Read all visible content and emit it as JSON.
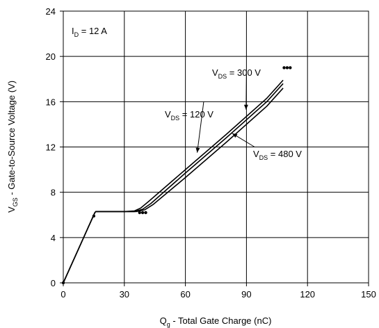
{
  "chart_data": {
    "type": "line",
    "xlabel": {
      "main": "Q",
      "sub": "g",
      "rest": " - Total Gate Charge (nC)"
    },
    "ylabel": {
      "main": "V",
      "sub": "GS",
      "rest": " - Gate-to-Source Voltage (V)"
    },
    "xlim": [
      0,
      150
    ],
    "ylim": [
      0,
      24
    ],
    "xticks": [
      0,
      30,
      60,
      90,
      120,
      150
    ],
    "yticks": [
      0,
      4,
      8,
      12,
      16,
      20,
      24
    ],
    "grid": true,
    "condition": {
      "main": "I",
      "sub": "D",
      "rest": " = 12 A"
    },
    "series": [
      {
        "name": "VDS = 120 V",
        "x": [
          0,
          4,
          8,
          12,
          15.5,
          16,
          20,
          25,
          30,
          35,
          38,
          42,
          60,
          80,
          100,
          108
        ],
        "y": [
          0,
          1.6,
          3.2,
          4.8,
          6.2,
          6.3,
          6.3,
          6.3,
          6.3,
          6.35,
          6.6,
          7.2,
          10.0,
          13.1,
          16.3,
          17.9
        ]
      },
      {
        "name": "VDS = 300 V",
        "x": [
          0,
          4,
          8,
          12,
          15.5,
          16,
          20,
          25,
          30,
          35,
          39,
          43,
          60,
          80,
          100,
          108
        ],
        "y": [
          0,
          1.6,
          3.2,
          4.8,
          6.2,
          6.3,
          6.3,
          6.3,
          6.3,
          6.3,
          6.5,
          7.0,
          9.7,
          12.8,
          16.0,
          17.6
        ]
      },
      {
        "name": "VDS = 480 V",
        "x": [
          0,
          4,
          8,
          12,
          15.5,
          16,
          20,
          25,
          30,
          36,
          40,
          44,
          60,
          80,
          100,
          108
        ],
        "y": [
          0,
          1.6,
          3.2,
          4.8,
          6.2,
          6.3,
          6.3,
          6.3,
          6.3,
          6.3,
          6.45,
          6.9,
          9.3,
          12.4,
          15.6,
          17.2
        ]
      }
    ],
    "annotations": [
      {
        "main": "V",
        "sub": "DS",
        "rest": " = 300 V"
      },
      {
        "main": "V",
        "sub": "DS",
        "rest": " = 120 V"
      },
      {
        "main": "V",
        "sub": "DS",
        "rest": " = 480 V"
      }
    ]
  }
}
